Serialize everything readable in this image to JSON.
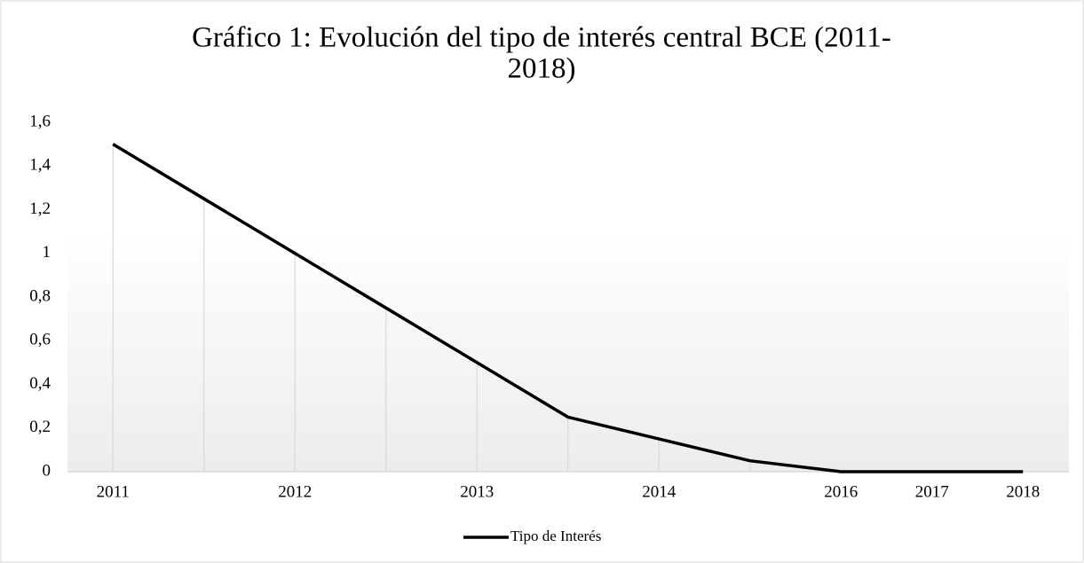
{
  "chart_data": {
    "type": "line",
    "title": [
      "Gráfico 1: Evolución del tipo de interés central BCE (2011-",
      "2018)"
    ],
    "categories": [
      "2011",
      null,
      "2012",
      null,
      "2013",
      null,
      "2014",
      null,
      "2016",
      "2017",
      "2018"
    ],
    "series": [
      {
        "name": "Tipo de Interés",
        "color": "#000000",
        "values": [
          1.5,
          1.25,
          1.0,
          0.75,
          0.5,
          0.25,
          0.15,
          0.05,
          0,
          0,
          0
        ]
      }
    ],
    "ylim": [
      0,
      1.6
    ],
    "yticks": [
      0,
      {
        "value": 0.2,
        "label": "0,2"
      },
      {
        "value": 0.4,
        "label": "0,4"
      },
      {
        "value": 0.6,
        "label": "0,6"
      },
      {
        "value": 0.8,
        "label": "0,8"
      },
      1,
      {
        "value": 1.2,
        "label": "1,2"
      },
      {
        "value": 1.4,
        "label": "1,4"
      },
      {
        "value": 1.6,
        "label": "1,6"
      }
    ],
    "drop_lines": true,
    "legend": "bottom"
  }
}
